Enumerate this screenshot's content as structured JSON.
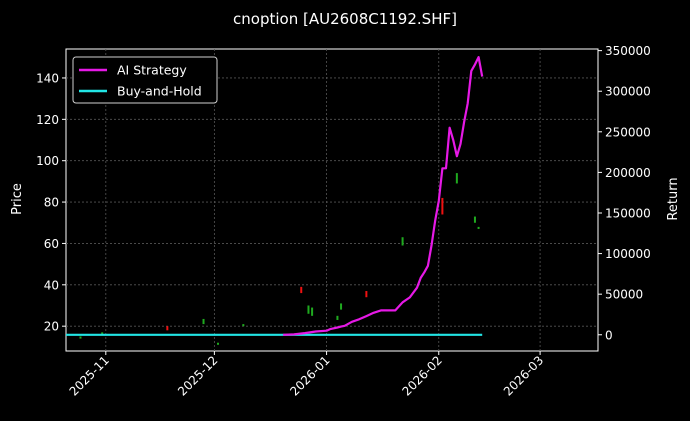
{
  "chart_data": {
    "type": "line",
    "title": "cnoption [AU2608C1192.SHF]",
    "ylabel_left": "Price",
    "ylabel_right": "Return",
    "x_type": "date",
    "xlim": [
      "2025-10-21",
      "2026-03-17"
    ],
    "ylim_left": [
      8,
      154
    ],
    "ylim_right": [
      -20000,
      352000
    ],
    "x_ticks": [
      "2025-11",
      "2025-12",
      "2026-01",
      "2026-02",
      "2026-03"
    ],
    "y_ticks_left": [
      20,
      40,
      60,
      80,
      100,
      120,
      140
    ],
    "y_ticks_right": [
      0,
      50000,
      100000,
      150000,
      200000,
      250000,
      300000,
      350000
    ],
    "grid": true,
    "legend_placement": "top-left",
    "series": [
      {
        "name": "AI Strategy",
        "color": "#e619e6",
        "axis": "right",
        "points": [
          [
            "2025-12-20",
            0
          ],
          [
            "2025-12-23",
            500
          ],
          [
            "2025-12-26",
            2000
          ],
          [
            "2025-12-29",
            4000
          ],
          [
            "2026-01-01",
            5000
          ],
          [
            "2026-01-02",
            7000
          ],
          [
            "2026-01-03",
            8000
          ],
          [
            "2026-01-04",
            9000
          ],
          [
            "2026-01-05",
            10000
          ],
          [
            "2026-01-06",
            11000
          ],
          [
            "2026-01-08",
            16000
          ],
          [
            "2026-01-10",
            19000
          ],
          [
            "2026-01-12",
            23000
          ],
          [
            "2026-01-14",
            27000
          ],
          [
            "2026-01-16",
            30000
          ],
          [
            "2026-01-20",
            30000
          ],
          [
            "2026-01-22",
            40000
          ],
          [
            "2026-01-24",
            46000
          ],
          [
            "2026-01-26",
            58000
          ],
          [
            "2026-01-27",
            70000
          ],
          [
            "2026-01-28",
            77000
          ],
          [
            "2026-01-29",
            85000
          ],
          [
            "2026-01-30",
            110000
          ],
          [
            "2026-01-31",
            140000
          ],
          [
            "2026-02-01",
            165000
          ],
          [
            "2026-02-02",
            205000
          ],
          [
            "2026-02-03",
            205000
          ],
          [
            "2026-02-04",
            255000
          ],
          [
            "2026-02-05",
            240000
          ],
          [
            "2026-02-06",
            220000
          ],
          [
            "2026-02-07",
            235000
          ],
          [
            "2026-02-08",
            262000
          ],
          [
            "2026-02-09",
            285000
          ],
          [
            "2026-02-10",
            325000
          ],
          [
            "2026-02-11",
            333000
          ],
          [
            "2026-02-12",
            342000
          ],
          [
            "2026-02-13",
            318000
          ]
        ]
      },
      {
        "name": "Buy-and-Hold",
        "color": "#22e5e5",
        "axis": "right",
        "points": [
          [
            "2025-10-21",
            0
          ],
          [
            "2026-02-13",
            0
          ]
        ]
      }
    ],
    "price_bars": {
      "axis": "left",
      "up_color": "#1faa1f",
      "down_color": "#ee1111",
      "bars": [
        [
          "2025-10-25",
          14.0,
          15.0,
          "up"
        ],
        [
          "2025-10-31",
          15.5,
          17.0,
          "up"
        ],
        [
          "2025-11-18",
          18.0,
          20.0,
          "down"
        ],
        [
          "2025-11-28",
          21.0,
          23.5,
          "up"
        ],
        [
          "2025-12-02",
          11.0,
          12.0,
          "up"
        ],
        [
          "2025-12-09",
          20.0,
          21.0,
          "up"
        ],
        [
          "2025-12-25",
          36.0,
          39.0,
          "down"
        ],
        [
          "2025-12-27",
          26.0,
          30.0,
          "up"
        ],
        [
          "2025-12-28",
          25.0,
          29.0,
          "up"
        ],
        [
          "2026-01-04",
          23.0,
          25.0,
          "up"
        ],
        [
          "2026-01-05",
          28.0,
          31.0,
          "up"
        ],
        [
          "2026-01-12",
          34.0,
          37.0,
          "down"
        ],
        [
          "2026-01-22",
          59.0,
          63.0,
          "up"
        ],
        [
          "2026-02-02",
          74.0,
          82.0,
          "down"
        ],
        [
          "2026-02-06",
          89.0,
          94.0,
          "up"
        ],
        [
          "2026-02-11",
          70.0,
          73.0,
          "up"
        ],
        [
          "2026-02-12",
          67.0,
          68.0,
          "up"
        ]
      ]
    }
  }
}
